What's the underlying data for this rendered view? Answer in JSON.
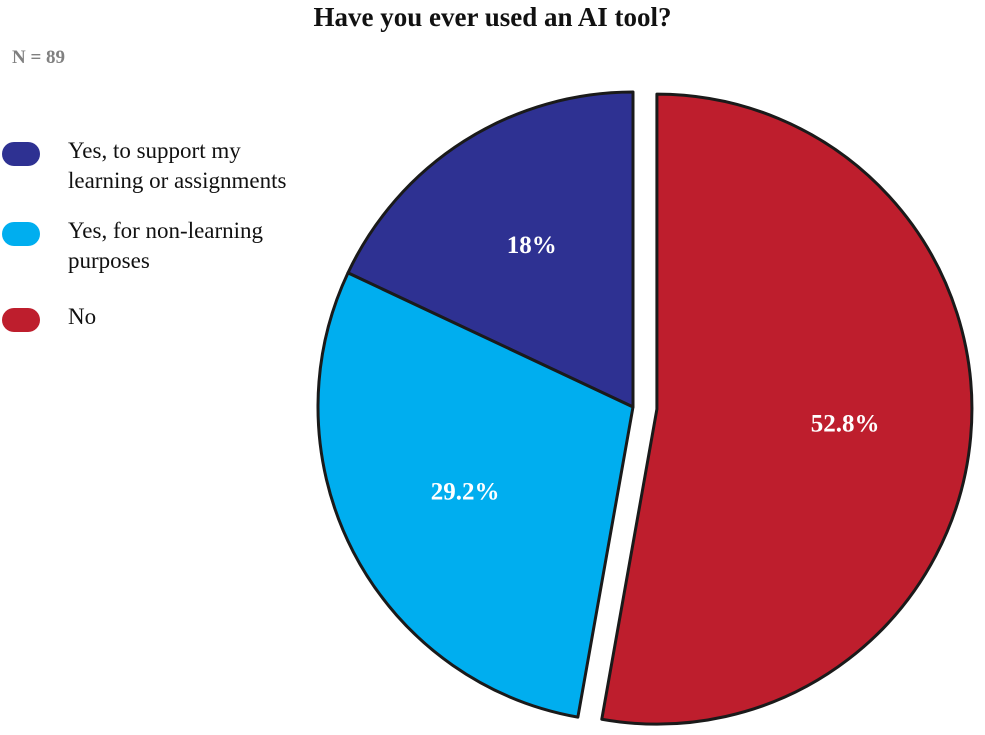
{
  "chart_data": {
    "type": "pie",
    "title": "Have you ever used an AI tool?",
    "subtitle": "N = 89",
    "categories": [
      "Yes, to support my learning or assignments",
      "Yes, for non-learning purposes",
      "No"
    ],
    "values": [
      18,
      29.2,
      52.8
    ],
    "value_labels": [
      "18%",
      "29.2%",
      "52.8%"
    ],
    "colors": [
      "#2e3192",
      "#00aeef",
      "#be1e2d"
    ]
  }
}
